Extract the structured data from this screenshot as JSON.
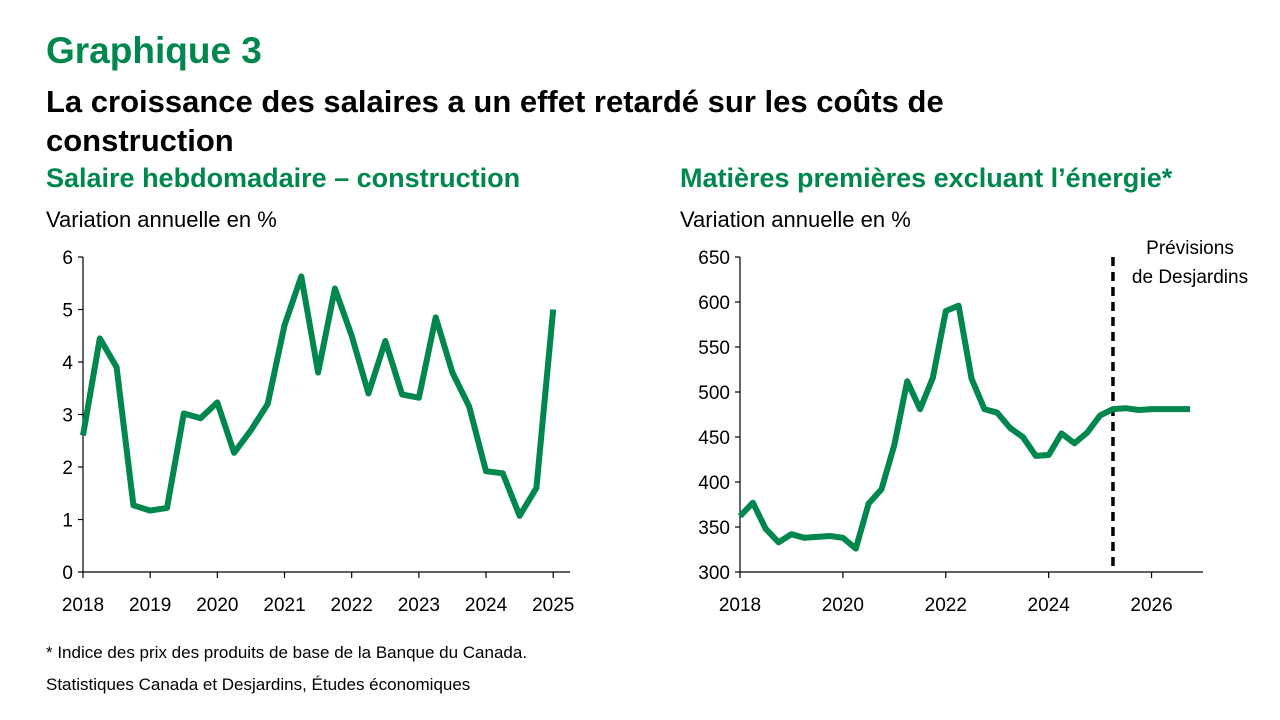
{
  "header": {
    "graphique_label": "Graphique 3",
    "title": "La croissance des salaires a un effet retardé sur les coûts de construction"
  },
  "left_panel": {
    "title": "Salaire hebdomadaire – construction",
    "unit": "Variation annuelle en %"
  },
  "right_panel": {
    "title": "Matières premières excluant l’énergie*",
    "unit": "Variation annuelle en %"
  },
  "footnotes": {
    "note": "* Indice des prix des produits de base de la Banque du Canada.",
    "source": "Statistiques Canada et Desjardins, Études économiques"
  },
  "colors": {
    "accent": "#00874e",
    "line": "#00874e",
    "axis": "#000000"
  },
  "chart_data": [
    {
      "type": "line",
      "title": "Salaire hebdomadaire – construction",
      "ylabel": "Variation annuelle en %",
      "xlim": [
        2018,
        2025.25
      ],
      "ylim": [
        0,
        6
      ],
      "yticks": [
        0,
        1,
        2,
        3,
        4,
        5,
        6
      ],
      "xticks": [
        2018,
        2019,
        2020,
        2021,
        2022,
        2023,
        2024,
        2025
      ],
      "xtick_labels": [
        "2018",
        "2019",
        "2020",
        "2021",
        "2022",
        "2023",
        "2024",
        "2025"
      ],
      "grid": false,
      "series": [
        {
          "x": [
            2018.0,
            2018.25,
            2018.5,
            2018.75,
            2019.0,
            2019.25,
            2019.5,
            2019.75,
            2020.0,
            2020.25,
            2020.5,
            2020.75,
            2021.0,
            2021.25,
            2021.5,
            2021.75,
            2022.0,
            2022.25,
            2022.5,
            2022.75,
            2023.0,
            2023.25,
            2023.5,
            2023.75,
            2024.0,
            2024.25,
            2024.5,
            2024.75,
            2025.0
          ],
          "y": [
            2.6,
            4.45,
            3.9,
            1.27,
            1.17,
            1.22,
            3.02,
            2.93,
            3.23,
            2.27,
            2.7,
            3.2,
            4.7,
            5.63,
            3.8,
            5.4,
            4.5,
            3.4,
            4.4,
            3.38,
            3.32,
            4.85,
            3.8,
            3.15,
            1.92,
            1.88,
            1.07,
            1.6,
            5.0
          ]
        }
      ]
    },
    {
      "type": "line",
      "title": "Matières premières excluant l’énergie*",
      "ylabel": "Variation annuelle en %",
      "xlim": [
        2018,
        2027
      ],
      "ylim": [
        300,
        650
      ],
      "yticks": [
        300,
        350,
        400,
        450,
        500,
        550,
        600,
        650
      ],
      "xticks": [
        2018,
        2020,
        2022,
        2024,
        2026
      ],
      "xtick_labels": [
        "2018",
        "2020",
        "2022",
        "2024",
        "2026"
      ],
      "grid": false,
      "forecast_start": 2025.25,
      "annotation": "Prévisions de Desjardins",
      "annotation_lines": [
        "Prévisions",
        "de Desjardins"
      ],
      "series": [
        {
          "x": [
            2018.0,
            2018.25,
            2018.5,
            2018.75,
            2019.0,
            2019.25,
            2019.5,
            2019.75,
            2020.0,
            2020.25,
            2020.5,
            2020.75,
            2021.0,
            2021.25,
            2021.5,
            2021.75,
            2022.0,
            2022.25,
            2022.5,
            2022.75,
            2023.0,
            2023.25,
            2023.5,
            2023.75,
            2024.0,
            2024.25,
            2024.5,
            2024.75,
            2025.0,
            2025.25,
            2025.5,
            2025.75,
            2026.0,
            2026.25,
            2026.5,
            2026.75
          ],
          "y": [
            362,
            377,
            348,
            333,
            342,
            338,
            339,
            340,
            338,
            326,
            376,
            392,
            441,
            512,
            481,
            516,
            590,
            596,
            515,
            481,
            477,
            460,
            450,
            429,
            430,
            454,
            443,
            455,
            474,
            481,
            482,
            480,
            481,
            481,
            481,
            481
          ]
        }
      ]
    }
  ]
}
